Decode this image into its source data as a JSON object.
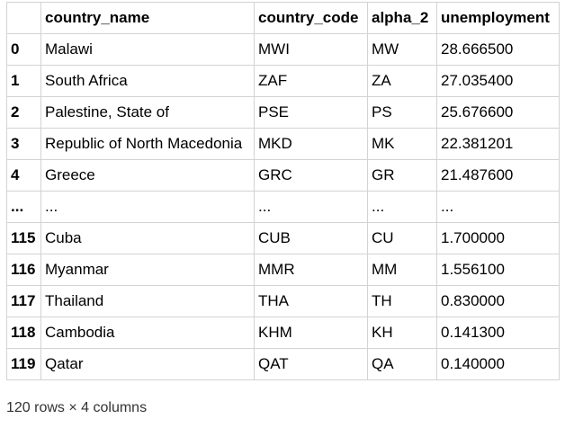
{
  "table": {
    "columns": [
      "",
      "country_name",
      "country_code",
      "alpha_2",
      "unemployment"
    ],
    "rows": [
      {
        "index": "0",
        "country_name": "Malawi",
        "country_code": "MWI",
        "alpha_2": "MW",
        "unemployment": "28.666500"
      },
      {
        "index": "1",
        "country_name": "South Africa",
        "country_code": "ZAF",
        "alpha_2": "ZA",
        "unemployment": "27.035400"
      },
      {
        "index": "2",
        "country_name": "Palestine, State of",
        "country_code": "PSE",
        "alpha_2": "PS",
        "unemployment": "25.676600"
      },
      {
        "index": "3",
        "country_name": "Republic of North Macedonia",
        "country_code": "MKD",
        "alpha_2": "MK",
        "unemployment": "22.381201"
      },
      {
        "index": "4",
        "country_name": "Greece",
        "country_code": "GRC",
        "alpha_2": "GR",
        "unemployment": "21.487600"
      },
      {
        "index": "...",
        "country_name": "...",
        "country_code": "...",
        "alpha_2": "...",
        "unemployment": "..."
      },
      {
        "index": "115",
        "country_name": "Cuba",
        "country_code": "CUB",
        "alpha_2": "CU",
        "unemployment": "1.700000"
      },
      {
        "index": "116",
        "country_name": "Myanmar",
        "country_code": "MMR",
        "alpha_2": "MM",
        "unemployment": "1.556100"
      },
      {
        "index": "117",
        "country_name": "Thailand",
        "country_code": "THA",
        "alpha_2": "TH",
        "unemployment": "0.830000"
      },
      {
        "index": "118",
        "country_name": "Cambodia",
        "country_code": "KHM",
        "alpha_2": "KH",
        "unemployment": "0.141300"
      },
      {
        "index": "119",
        "country_name": "Qatar",
        "country_code": "QAT",
        "alpha_2": "QA",
        "unemployment": "0.140000"
      }
    ]
  },
  "footer": {
    "shape_text": "120 rows × 4 columns"
  }
}
